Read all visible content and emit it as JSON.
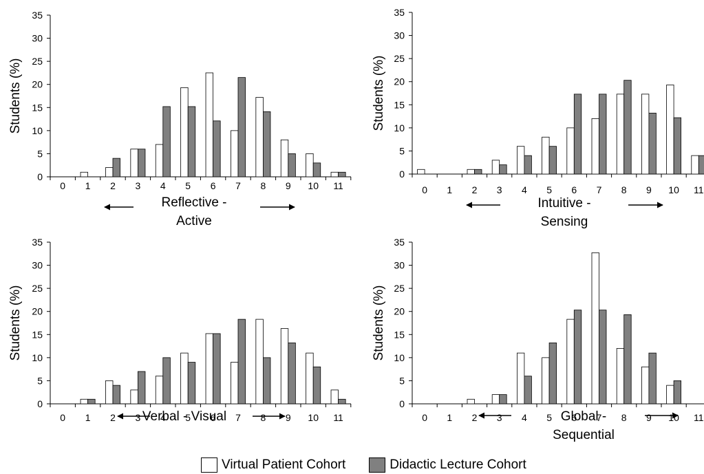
{
  "chart_data": [
    {
      "type": "bar",
      "ylabel": "Students (%)",
      "xlabel": "Reflective - Active",
      "xlabel_lines": [
        "Reflective -",
        "Active"
      ],
      "categories": [
        "0",
        "1",
        "2",
        "3",
        "4",
        "5",
        "6",
        "7",
        "8",
        "9",
        "10",
        "11"
      ],
      "ylim": [
        0,
        35
      ],
      "yticks": [
        0,
        5,
        10,
        15,
        20,
        25,
        30,
        35
      ],
      "series": [
        {
          "name": "Virtual Patient Cohort",
          "values": [
            0,
            1,
            2,
            6,
            7,
            19.3,
            22.5,
            10,
            17.2,
            8,
            5,
            1
          ]
        },
        {
          "name": "Didactic Lecture Cohort",
          "values": [
            0,
            0,
            4,
            6,
            15.2,
            15.2,
            12.1,
            21.5,
            14.1,
            5,
            3,
            1
          ]
        }
      ]
    },
    {
      "type": "bar",
      "ylabel": "Students (%)",
      "xlabel": "Intuitive - Sensing",
      "xlabel_lines": [
        "Intuitive -",
        "Sensing"
      ],
      "categories": [
        "0",
        "1",
        "2",
        "3",
        "4",
        "5",
        "6",
        "7",
        "8",
        "9",
        "10",
        "11"
      ],
      "ylim": [
        0,
        35
      ],
      "yticks": [
        0,
        5,
        10,
        15,
        20,
        25,
        30,
        35
      ],
      "series": [
        {
          "name": "Virtual Patient Cohort",
          "values": [
            1,
            0,
            1,
            3,
            6,
            8,
            10,
            12,
            17.3,
            17.3,
            19.3,
            4
          ]
        },
        {
          "name": "Didactic Lecture Cohort",
          "values": [
            0,
            0,
            1,
            2,
            4,
            6,
            17.3,
            17.3,
            20.3,
            13.2,
            12.2,
            4
          ]
        }
      ]
    },
    {
      "type": "bar",
      "ylabel": "Students (%)",
      "xlabel": "Verbal - Visual",
      "xlabel_lines": [
        "Verbal - Visual"
      ],
      "categories": [
        "0",
        "1",
        "2",
        "3",
        "4",
        "5",
        "6",
        "7",
        "8",
        "9",
        "10",
        "11"
      ],
      "ylim": [
        0,
        35
      ],
      "yticks": [
        0,
        5,
        10,
        15,
        20,
        25,
        30,
        35
      ],
      "series": [
        {
          "name": "Virtual Patient Cohort",
          "values": [
            0,
            1,
            5,
            3,
            6,
            11,
            15.2,
            9,
            18.3,
            16.3,
            11,
            3
          ]
        },
        {
          "name": "Didactic Lecture Cohort",
          "values": [
            0,
            1,
            4,
            7,
            10,
            9,
            15.2,
            18.3,
            10,
            13.2,
            8,
            1
          ]
        }
      ]
    },
    {
      "type": "bar",
      "ylabel": "Students (%)",
      "xlabel": "Global - Sequential",
      "xlabel_lines": [
        "Global -",
        "Sequential"
      ],
      "categories": [
        "0",
        "1",
        "2",
        "3",
        "4",
        "5",
        "6",
        "7",
        "8",
        "9",
        "10",
        "11"
      ],
      "ylim": [
        0,
        35
      ],
      "yticks": [
        0,
        5,
        10,
        15,
        20,
        25,
        30,
        35
      ],
      "series": [
        {
          "name": "Virtual Patient Cohort",
          "values": [
            0,
            0,
            1,
            2,
            11,
            10,
            18.3,
            32.7,
            12,
            8,
            4,
            0
          ]
        },
        {
          "name": "Didactic Lecture Cohort",
          "values": [
            0,
            0,
            0,
            2,
            6,
            13.2,
            20.3,
            20.3,
            19.3,
            11,
            5,
            0
          ]
        }
      ]
    }
  ],
  "legend": {
    "items": [
      {
        "label": "Virtual Patient Cohort",
        "color": "#ffffff"
      },
      {
        "label": "Didactic Lecture Cohort",
        "color": "#808080"
      }
    ]
  },
  "colors": {
    "virtual": "#ffffff",
    "didactic": "#808080",
    "outline": "#000000"
  }
}
